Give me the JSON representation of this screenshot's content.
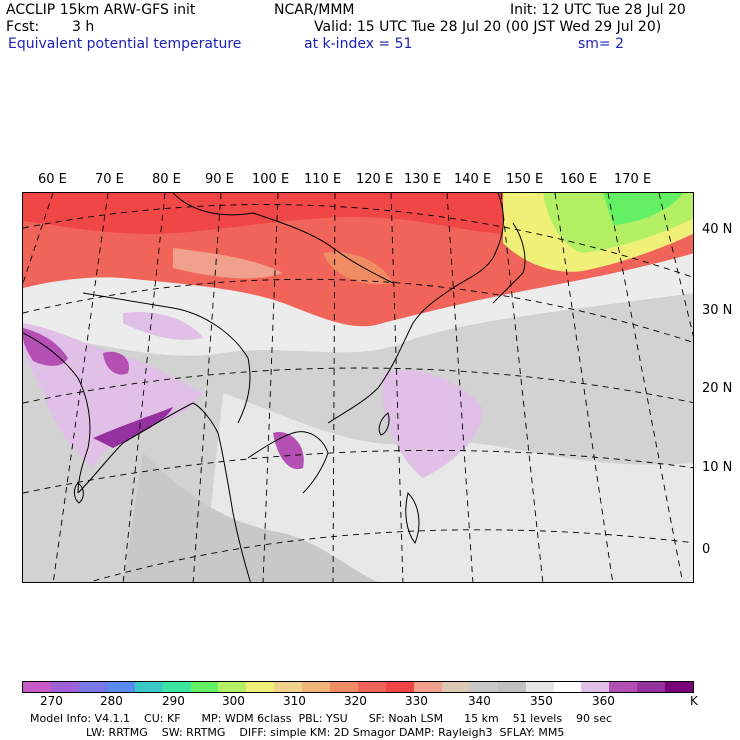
{
  "header": {
    "model": "ACCLIP 15km ARW-GFS init",
    "center": "NCAR/MMM",
    "init": "Init: 12 UTC Tue 28 Jul 20",
    "fcst_label": "Fcst:",
    "fcst_value": "3 h",
    "valid": "Valid: 15 UTC Tue 28 Jul 20 (00 JST Wed 29 Jul 20)",
    "field": "Equivalent potential temperature",
    "level": "at k-index = 51",
    "smooth": "sm= 2"
  },
  "map": {
    "lon_labels": [
      "60 E",
      "70 E",
      "80 E",
      "90 E",
      "100 E",
      "110 E",
      "120 E",
      "130 E",
      "140 E",
      "150 E",
      "160 E",
      "170 E"
    ],
    "lat_labels": [
      "40 N",
      "30 N",
      "20 N",
      "10 N",
      "0"
    ]
  },
  "colorbar": {
    "colors": [
      "#c85ac8",
      "#a060d8",
      "#7a78e6",
      "#5a8cf0",
      "#3cc8c8",
      "#3ce6a0",
      "#64f064",
      "#b4f064",
      "#f0f078",
      "#f0d28c",
      "#f0b478",
      "#f08c64",
      "#f0645a",
      "#f04646",
      "#f0a08c",
      "#dcc8b4",
      "#c8c8c8",
      "#c0c0c0",
      "#e6e6e6",
      "#ffffff",
      "#e0c0e6",
      "#b450b4",
      "#9632a0",
      "#780078"
    ],
    "labels": [
      "270",
      "280",
      "290",
      "300",
      "310",
      "320",
      "330",
      "340",
      "350",
      "360",
      "K"
    ]
  },
  "footer": {
    "line1": "Model Info: V4.1.1    CU: KF      MP: WDM 6class  PBL: YSU      SF: Noah LSM      15 km    51 levels    90 sec",
    "line2": "LW: RRTMG    SW: RRTMG    DIFF: simple KM: 2D Smagor DAMP: Rayleigh3  SFLAY: MM5"
  }
}
